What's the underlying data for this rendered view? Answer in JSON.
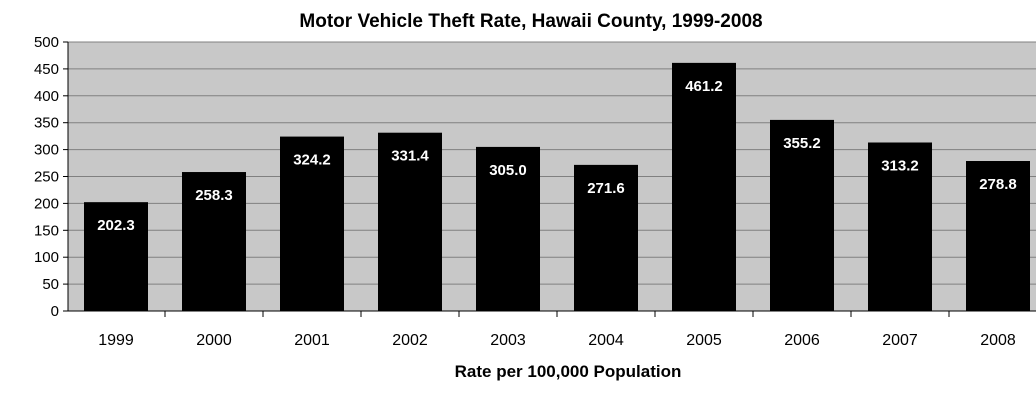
{
  "chart_data": {
    "type": "bar",
    "title": "Motor Vehicle Theft Rate, Hawaii County, 1999-2008",
    "xlabel": "Rate per 100,000 Population",
    "ylabel": "",
    "categories": [
      "1999",
      "2000",
      "2001",
      "2002",
      "2003",
      "2004",
      "2005",
      "2006",
      "2007",
      "2008"
    ],
    "values": [
      202.3,
      258.3,
      324.2,
      331.4,
      305.0,
      271.6,
      461.2,
      355.2,
      313.2,
      278.8
    ],
    "data_labels": [
      "202.3",
      "258.3",
      "324.2",
      "331.4",
      "305.0",
      "271.6",
      "461.2",
      "355.2",
      "313.2",
      "278.8"
    ],
    "ylim": [
      0,
      500
    ],
    "yticks": [
      "0",
      "50",
      "100",
      "150",
      "200",
      "250",
      "300",
      "350",
      "400",
      "450",
      "500"
    ],
    "grid": true,
    "legend": "none",
    "colors": {
      "bar": "#000000",
      "plot_background": "#c8c8c8",
      "gridline": "#808080",
      "data_label": "#ffffff"
    }
  }
}
